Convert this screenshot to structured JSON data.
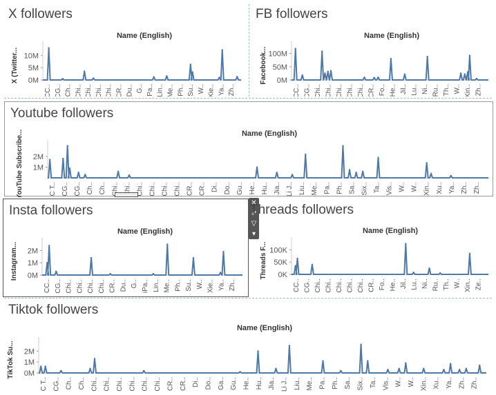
{
  "accent_color": "#4e79a7",
  "charts": [
    {
      "id": "x",
      "title": "X followers",
      "xlabel": "Name (English)",
      "ylabel": "X (Twitter...",
      "yticks": [
        "10M",
        "5M",
        "0M"
      ],
      "ytick_values": [
        10000000,
        5000000,
        0
      ],
      "ylim": [
        0,
        14000000
      ],
      "categories": [
        "CC..",
        "CG..",
        "Ch..",
        "Chi..",
        "Chi..",
        "Chi..",
        "Chi..",
        "CR..",
        "Du..",
        "G..",
        "iPa..",
        "Lin..",
        "Me..",
        "Ph..",
        "Su..",
        "W..",
        "Xie..",
        "Ya..",
        "Zh.."
      ]
    },
    {
      "id": "fb",
      "title": "FB followers",
      "xlabel": "Name (English)",
      "ylabel": "Facebook...",
      "yticks": [
        "100M",
        "50M",
        "0M"
      ],
      "ytick_values": [
        100000000,
        50000000,
        0
      ],
      "ylim": [
        0,
        130000000
      ],
      "categories": [
        "CC..",
        "CG..",
        "Chi..",
        "Chi..",
        "Chi..",
        "Chi..",
        "Chi..",
        "CR..",
        "Fo..",
        "He..",
        "Jil..",
        "Lu..",
        "Ni..",
        "Ru..",
        "Th..",
        "W..",
        "Xin..",
        "Zh.."
      ]
    },
    {
      "id": "yt",
      "title": "Youtube followers",
      "xlabel": "Name (English)",
      "ylabel": "YouTube Subscribe...",
      "yticks": [
        "2M",
        "1M"
      ],
      "ytick_values": [
        2000000,
        1000000
      ],
      "ylim": [
        0,
        3100000
      ],
      "categories": [
        "C T..",
        "CG..",
        "CG..",
        "Ch..",
        "Ch..",
        "Chi..",
        "Chi..",
        "Chi..",
        "Chi..",
        "Chi..",
        "Chi..",
        "CR..",
        "CR..",
        "Di..",
        "Do..",
        "Gu..",
        "He..",
        "Hu..",
        "Jia..",
        "Li J..",
        "Liu..",
        "Me..",
        "Pa..",
        "Ph..",
        "Sa..",
        "Six..",
        "Ta..",
        "Vis..",
        "W..",
        "W..",
        "Xin..",
        "Xu..",
        "Ya..",
        "Zh..",
        "Zh.."
      ]
    },
    {
      "id": "ig",
      "title": "Insta followers",
      "xlabel": "Name (English)",
      "ylabel": "Instagram...",
      "yticks": [
        "2M",
        "1M",
        "0M"
      ],
      "ytick_values": [
        2000000,
        1000000,
        0
      ],
      "ylim": [
        0,
        2700000
      ],
      "categories": [
        "CC..",
        "CG..",
        "Chi..",
        "Chi..",
        "Chi..",
        "Chi..",
        "CR..",
        "Du..",
        "G..",
        "iPa..",
        "Lin..",
        "Me..",
        "Ph..",
        "Su..",
        "W..",
        "Xie..",
        "Ya..",
        "Zh.."
      ]
    },
    {
      "id": "th",
      "title": "Threads followers",
      "xlabel": "Name (English)",
      "ylabel": "Threads F...",
      "yticks": [
        "100K",
        "50K",
        "0K"
      ],
      "ytick_values": [
        100000,
        50000,
        0
      ],
      "ylim": [
        0,
        135000
      ],
      "categories": [
        "CC..",
        "CG..",
        "Chi..",
        "Chi..",
        "Chi..",
        "Chi..",
        "Chi..",
        "CR..",
        "Fo..",
        "He..",
        "Jil..",
        "Lu..",
        "Ni..",
        "Ru..",
        "Th..",
        "W..",
        "Xin..",
        "Ze.."
      ]
    },
    {
      "id": "tt",
      "title": "Tiktok followers",
      "xlabel": "Name (English)",
      "ylabel": "TikTok Su...",
      "yticks": [
        "2M",
        "1M",
        "0M"
      ],
      "ytick_values": [
        2000000,
        1000000,
        0
      ],
      "ylim": [
        0,
        2900000
      ],
      "categories": [
        "C T..",
        "CG..",
        "Ch..",
        "Ch..",
        "Chi..",
        "Chi..",
        "Chi..",
        "Chi..",
        "Chi..",
        "Chi..",
        "CR..",
        "CR..",
        "Di..",
        "Do..",
        "Ga..",
        "Gu..",
        "He..",
        "Hu..",
        "Jia..",
        "Li J..",
        "Liu..",
        "Me..",
        "Pa..",
        "Ph..",
        "Sa..",
        "Six..",
        "Ta..",
        "Vis..",
        "W..",
        "W..",
        "Xin..",
        "Xu..",
        "Ya..",
        "Zh..",
        "Zh.."
      ]
    }
  ],
  "chart_data": [
    {
      "type": "area",
      "title": "X followers",
      "xlabel": "Name (English)",
      "ylabel": "X (Twitter...",
      "ylim": [
        0,
        14000000
      ],
      "categories": [
        "CC..",
        "CG..",
        "Ch..",
        "Chi..",
        "Chi..",
        "Chi..",
        "Chi..",
        "CR..",
        "Du..",
        "G..",
        "iPa..",
        "Lin..",
        "Me..",
        "Ph..",
        "Su..",
        "W..",
        "Xie..",
        "Ya..",
        "Zh.."
      ],
      "peaks": [
        {
          "pos": 0.03,
          "value": 13000000
        },
        {
          "pos": 0.1,
          "value": 500000
        },
        {
          "pos": 0.21,
          "value": 3500000
        },
        {
          "pos": 0.255,
          "value": 700000
        },
        {
          "pos": 0.56,
          "value": 1200000
        },
        {
          "pos": 0.625,
          "value": 1600000
        },
        {
          "pos": 0.745,
          "value": 6300000
        },
        {
          "pos": 0.755,
          "value": 3200000
        },
        {
          "pos": 0.905,
          "value": 12200000
        },
        {
          "pos": 0.89,
          "value": 1000000
        },
        {
          "pos": 0.98,
          "value": 1300000
        }
      ]
    },
    {
      "type": "area",
      "title": "FB followers",
      "xlabel": "Name (English)",
      "ylabel": "Facebook...",
      "ylim": [
        0,
        130000000
      ],
      "categories": [
        "CC..",
        "CG..",
        "Chi..",
        "Chi..",
        "Chi..",
        "Chi..",
        "Chi..",
        "CR..",
        "Fo..",
        "He..",
        "Jil..",
        "Lu..",
        "Ni..",
        "Ru..",
        "Th..",
        "W..",
        "Xin..",
        "Zh.."
      ],
      "peaks": [
        {
          "pos": 0.02,
          "value": 118000000
        },
        {
          "pos": 0.055,
          "value": 18000000
        },
        {
          "pos": 0.155,
          "value": 108000000
        },
        {
          "pos": 0.17,
          "value": 25000000
        },
        {
          "pos": 0.185,
          "value": 32000000
        },
        {
          "pos": 0.2,
          "value": 35000000
        },
        {
          "pos": 0.37,
          "value": 10000000
        },
        {
          "pos": 0.42,
          "value": 9000000
        },
        {
          "pos": 0.44,
          "value": 10000000
        },
        {
          "pos": 0.505,
          "value": 80000000
        },
        {
          "pos": 0.575,
          "value": 22000000
        },
        {
          "pos": 0.69,
          "value": 88000000
        },
        {
          "pos": 0.86,
          "value": 25000000
        },
        {
          "pos": 0.88,
          "value": 22000000
        },
        {
          "pos": 0.895,
          "value": 30000000
        },
        {
          "pos": 0.905,
          "value": 92000000
        },
        {
          "pos": 0.94,
          "value": 5000000
        }
      ]
    },
    {
      "type": "area",
      "title": "Youtube followers",
      "xlabel": "Name (English)",
      "ylabel": "YouTube Subscribe...",
      "ylim": [
        0,
        3100000
      ],
      "categories": [
        "C T..",
        "CG..",
        "CG..",
        "Ch..",
        "Ch..",
        "Chi..",
        "Chi..",
        "Chi..",
        "Chi..",
        "Chi..",
        "Chi..",
        "CR..",
        "CR..",
        "Di..",
        "Do..",
        "Gu..",
        "He..",
        "Hu..",
        "Jia..",
        "Li J..",
        "Liu..",
        "Me..",
        "Pa..",
        "Ph..",
        "Sa..",
        "Six..",
        "Ta..",
        "Vis..",
        "W..",
        "W..",
        "Xin..",
        "Xu..",
        "Ya..",
        "Zh..",
        "Zh.."
      ],
      "peaks": [
        {
          "pos": 0.005,
          "value": 1700000
        },
        {
          "pos": 0.035,
          "value": 1800000
        },
        {
          "pos": 0.045,
          "value": 3000000
        },
        {
          "pos": 0.05,
          "value": 900000
        },
        {
          "pos": 0.07,
          "value": 500000
        },
        {
          "pos": 0.085,
          "value": 300000
        },
        {
          "pos": 0.16,
          "value": 600000
        },
        {
          "pos": 0.185,
          "value": 250000
        },
        {
          "pos": 0.475,
          "value": 1000000
        },
        {
          "pos": 0.52,
          "value": 500000
        },
        {
          "pos": 0.555,
          "value": 300000
        },
        {
          "pos": 0.585,
          "value": 2200000
        },
        {
          "pos": 0.67,
          "value": 3000000
        },
        {
          "pos": 0.685,
          "value": 750000
        },
        {
          "pos": 0.7,
          "value": 500000
        },
        {
          "pos": 0.715,
          "value": 600000
        },
        {
          "pos": 0.75,
          "value": 1900000
        },
        {
          "pos": 0.86,
          "value": 1400000
        },
        {
          "pos": 0.87,
          "value": 400000
        },
        {
          "pos": 0.915,
          "value": 200000
        }
      ]
    },
    {
      "type": "area",
      "title": "Insta followers",
      "xlabel": "Name (English)",
      "ylabel": "Instagram...",
      "ylim": [
        0,
        2700000
      ],
      "categories": [
        "CC..",
        "CG..",
        "Chi..",
        "Chi..",
        "Chi..",
        "Chi..",
        "CR..",
        "Du..",
        "G..",
        "iPa..",
        "Lin..",
        "Me..",
        "Ph..",
        "Su..",
        "W..",
        "Xie..",
        "Ya..",
        "Zh.."
      ],
      "peaks": [
        {
          "pos": 0.025,
          "value": 1000000
        },
        {
          "pos": 0.035,
          "value": 2400000
        },
        {
          "pos": 0.07,
          "value": 300000
        },
        {
          "pos": 0.245,
          "value": 1400000
        },
        {
          "pos": 0.34,
          "value": 100000
        },
        {
          "pos": 0.555,
          "value": 100000
        },
        {
          "pos": 0.625,
          "value": 2500000
        },
        {
          "pos": 0.755,
          "value": 1400000
        },
        {
          "pos": 0.89,
          "value": 200000
        },
        {
          "pos": 0.905,
          "value": 1900000
        }
      ]
    },
    {
      "type": "area",
      "title": "Threads followers",
      "xlabel": "Name (English)",
      "ylabel": "Threads F...",
      "ylim": [
        0,
        135000
      ],
      "categories": [
        "CC..",
        "CG..",
        "Chi..",
        "Chi..",
        "Chi..",
        "Chi..",
        "Chi..",
        "CR..",
        "Fo..",
        "He..",
        "Jil..",
        "Lu..",
        "Ni..",
        "Ru..",
        "Th..",
        "W..",
        "Xin..",
        "Ze.."
      ],
      "peaks": [
        {
          "pos": 0.02,
          "value": 35000
        },
        {
          "pos": 0.03,
          "value": 65000
        },
        {
          "pos": 0.105,
          "value": 40000
        },
        {
          "pos": 0.58,
          "value": 125000
        },
        {
          "pos": 0.62,
          "value": 8000
        },
        {
          "pos": 0.7,
          "value": 25000
        },
        {
          "pos": 0.755,
          "value": 5000
        },
        {
          "pos": 0.905,
          "value": 85000
        }
      ]
    },
    {
      "type": "area",
      "title": "Tiktok followers",
      "xlabel": "Name (English)",
      "ylabel": "TikTok Su...",
      "ylim": [
        0,
        2900000
      ],
      "categories": [
        "C T..",
        "CG..",
        "Ch..",
        "Ch..",
        "Chi..",
        "Chi..",
        "Chi..",
        "Chi..",
        "Chi..",
        "Chi..",
        "CR..",
        "CR..",
        "Di..",
        "Do..",
        "Ga..",
        "Gu..",
        "He..",
        "Hu..",
        "Jia..",
        "Li J..",
        "Liu..",
        "Me..",
        "Pa..",
        "Ph..",
        "Sa..",
        "Six..",
        "Ta..",
        "Vis..",
        "W..",
        "W..",
        "Xin..",
        "Xu..",
        "Ya..",
        "Zh..",
        "Zh.."
      ],
      "peaks": [
        {
          "pos": 0.005,
          "value": 600000
        },
        {
          "pos": 0.015,
          "value": 600000
        },
        {
          "pos": 0.05,
          "value": 200000
        },
        {
          "pos": 0.115,
          "value": 400000
        },
        {
          "pos": 0.125,
          "value": 1300000
        },
        {
          "pos": 0.235,
          "value": 200000
        },
        {
          "pos": 0.45,
          "value": 100000
        },
        {
          "pos": 0.49,
          "value": 2000000
        },
        {
          "pos": 0.53,
          "value": 400000
        },
        {
          "pos": 0.56,
          "value": 2500000
        },
        {
          "pos": 0.635,
          "value": 1100000
        },
        {
          "pos": 0.675,
          "value": 200000
        },
        {
          "pos": 0.72,
          "value": 2600000
        },
        {
          "pos": 0.735,
          "value": 1100000
        },
        {
          "pos": 0.78,
          "value": 300000
        },
        {
          "pos": 0.805,
          "value": 400000
        },
        {
          "pos": 0.82,
          "value": 900000
        },
        {
          "pos": 0.86,
          "value": 400000
        },
        {
          "pos": 0.905,
          "value": 300000
        },
        {
          "pos": 0.92,
          "value": 850000
        },
        {
          "pos": 0.94,
          "value": 300000
        },
        {
          "pos": 0.955,
          "value": 400000
        },
        {
          "pos": 0.985,
          "value": 700000
        }
      ]
    }
  ]
}
